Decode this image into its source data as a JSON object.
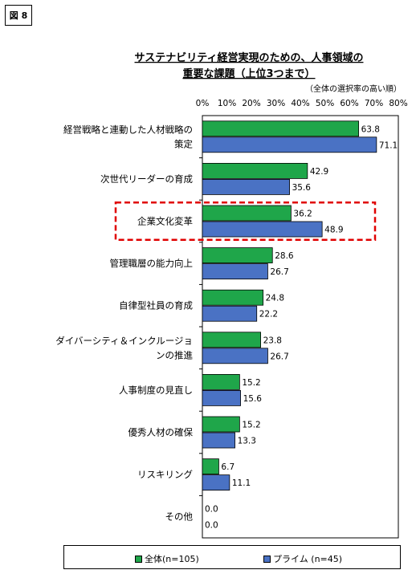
{
  "figure_label": "図 8",
  "chart_data": {
    "type": "bar",
    "orientation": "horizontal",
    "title_line1": "サステナビリティ経営実現のための、人事領域の",
    "title_line2": "重要な課題（上位3つまで）",
    "note": "（全体の選択率の高い順）",
    "xlim": [
      0,
      80
    ],
    "x_ticks": [
      "0%",
      "10%",
      "20%",
      "30%",
      "40%",
      "50%",
      "60%",
      "70%",
      "80%"
    ],
    "categories": [
      [
        "経営戦略と連動した人材戦略の",
        "策定"
      ],
      [
        "次世代リーダーの育成"
      ],
      [
        "企業文化変革"
      ],
      [
        "管理職層の能力向上"
      ],
      [
        "自律型社員の育成"
      ],
      [
        "ダイバーシティ＆インクルージョ",
        "ンの推進"
      ],
      [
        "人事制度の見直し"
      ],
      [
        "優秀人材の確保"
      ],
      [
        "リスキリング"
      ],
      [
        "その他"
      ]
    ],
    "series": [
      {
        "name": "全体(n=105)",
        "color": "#1fa64a",
        "values": [
          63.8,
          42.9,
          36.2,
          28.6,
          24.8,
          23.8,
          15.2,
          15.2,
          6.7,
          0.0
        ]
      },
      {
        "name": "プライム (n=45)",
        "color": "#4a72c4",
        "values": [
          71.1,
          35.6,
          48.9,
          26.7,
          22.2,
          26.7,
          15.6,
          13.3,
          11.1,
          0.0
        ]
      }
    ],
    "highlight_category_index": 2,
    "highlight_color": "#e00000",
    "grid": false,
    "legend_position": "bottom"
  }
}
